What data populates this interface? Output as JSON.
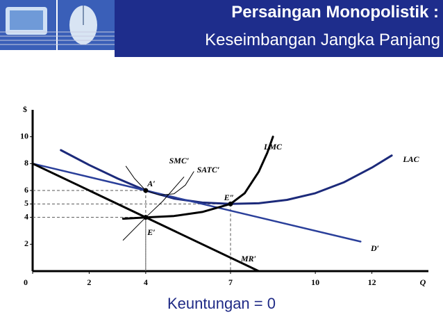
{
  "header": {
    "title": "Persaingan Monopolistik :",
    "subtitle": "Keseimbangan Jangka Panjang"
  },
  "chart_data": {
    "type": "line",
    "xlabel": "Q",
    "ylabel": "$",
    "xlim": [
      0,
      14
    ],
    "ylim": [
      0,
      12
    ],
    "xticks": [
      0,
      2,
      4,
      7,
      10,
      12
    ],
    "yticks": [
      2,
      4,
      5,
      6,
      8,
      10
    ],
    "caption": "Keuntungan = 0",
    "series": [
      {
        "name": "LAC",
        "color": "#1c2a7a",
        "x": [
          1,
          2,
          3,
          4,
          5,
          6,
          7,
          8,
          9,
          10,
          11,
          12,
          12.7
        ],
        "values": [
          9,
          7.9,
          6.9,
          6,
          5.4,
          5.1,
          5,
          5.05,
          5.3,
          5.8,
          6.6,
          7.7,
          8.6
        ]
      },
      {
        "name": "D′",
        "color": "#2a3f9a",
        "x": [
          0,
          4,
          11.6
        ],
        "values": [
          8,
          6,
          2.2
        ]
      },
      {
        "name": "MR′",
        "color": "#000000",
        "x": [
          0,
          8
        ],
        "values": [
          8,
          0
        ]
      },
      {
        "name": "LMC",
        "color": "#000000",
        "x": [
          3.2,
          4,
          5,
          6,
          7,
          7.5,
          8,
          8.3,
          8.5
        ],
        "values": [
          3.9,
          4,
          4.1,
          4.4,
          5,
          5.8,
          7.4,
          8.8,
          10
        ]
      },
      {
        "name": "SMC′",
        "color": "#000000",
        "x": [
          3.2,
          4,
          4.6,
          5.35
        ],
        "values": [
          2.3,
          4,
          5.2,
          7
        ]
      },
      {
        "name": "SATC′",
        "color": "#000000",
        "x": [
          3.3,
          3.6,
          4,
          4.5,
          5,
          5.4,
          5.7
        ],
        "values": [
          7.8,
          6.9,
          6,
          5.65,
          5.75,
          6.4,
          7.4
        ]
      }
    ],
    "points": [
      {
        "label": "A′",
        "x": 4,
        "y": 6
      },
      {
        "label": "E′",
        "x": 4,
        "y": 4
      },
      {
        "label": "E″",
        "x": 7,
        "y": 5
      }
    ]
  }
}
